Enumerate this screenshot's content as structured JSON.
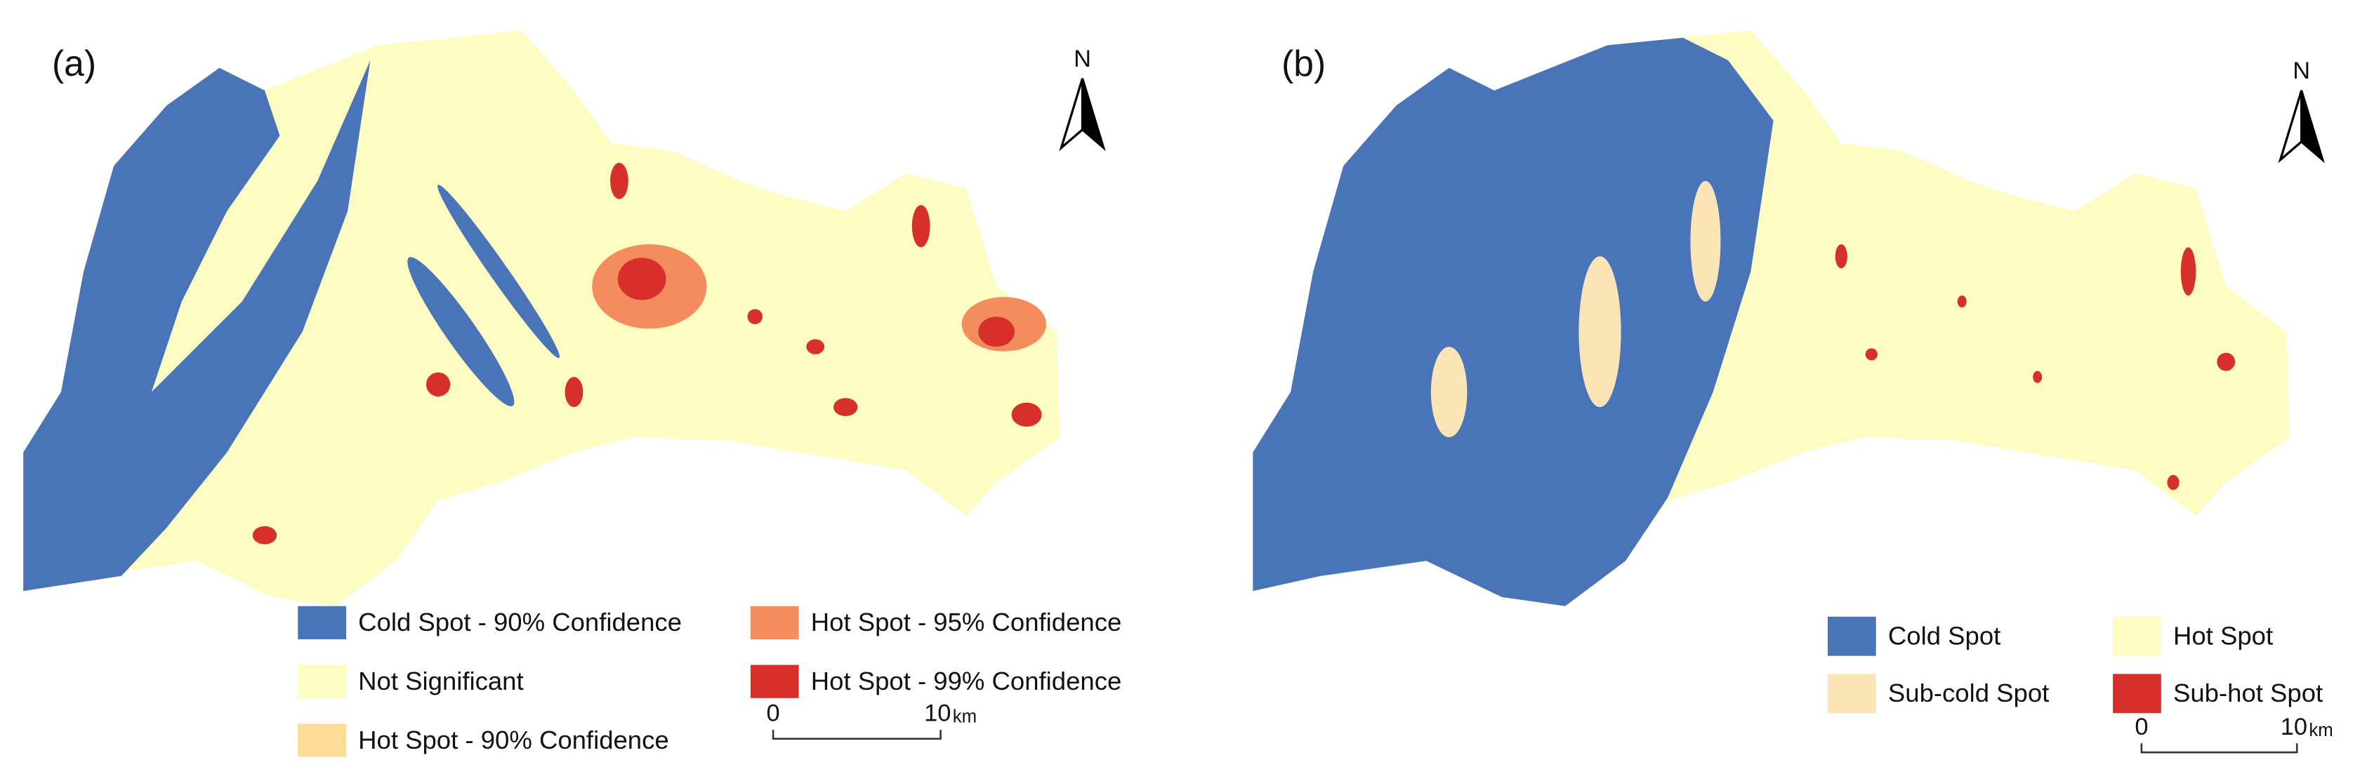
{
  "panels": [
    {
      "label": "(a)",
      "north": "N",
      "legend": [
        {
          "label": "Cold Spot - 90% Confidence",
          "color": "#4a74b8"
        },
        {
          "label": "Not Significant",
          "color": "#fdfcc3"
        },
        {
          "label": "Hot Spot - 90% Confidence",
          "color": "#fddc98"
        },
        {
          "label": "Hot Spot - 95% Confidence",
          "color": "#f58c5e"
        },
        {
          "label": "Hot Spot - 99% Confidence",
          "color": "#d7302a"
        }
      ],
      "scale_bar": {
        "start": "0",
        "end": "10",
        "unit": "km"
      }
    },
    {
      "label": "(b)",
      "north": "N",
      "legend": [
        {
          "label": "Cold Spot",
          "color": "#4a74b8"
        },
        {
          "label": "Sub-cold Spot",
          "color": "#fbe4b6"
        },
        {
          "label": "Hot Spot",
          "color": "#fdfcc3"
        },
        {
          "label": "Sub-hot Spot",
          "color": "#d7302a"
        }
      ],
      "scale_bar": {
        "start": "0",
        "end": "10",
        "unit": "km"
      }
    }
  ]
}
